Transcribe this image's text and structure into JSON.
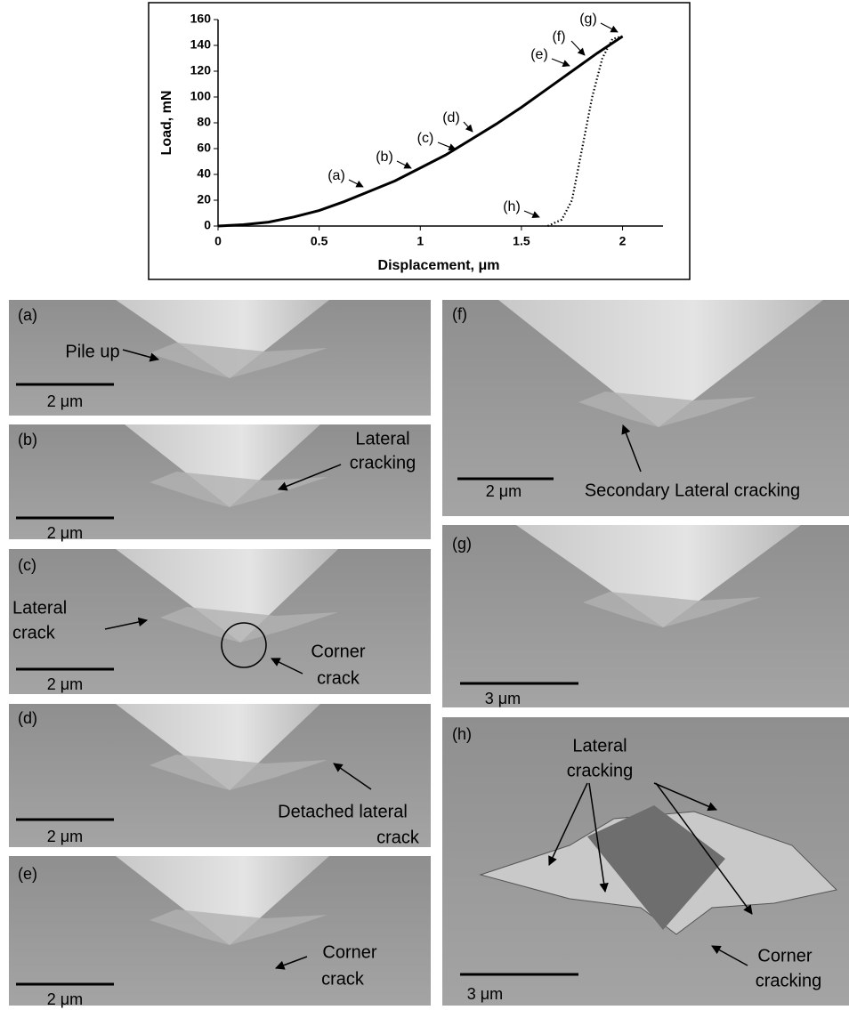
{
  "chart_data": {
    "type": "line",
    "x_label": "Displacement, μm",
    "y_label": "Load, mN",
    "xlim": [
      0,
      2.2
    ],
    "xticks": [
      0,
      0.5,
      1,
      1.5,
      2
    ],
    "ylim": [
      0,
      160
    ],
    "yticks": [
      0,
      20,
      40,
      60,
      80,
      100,
      120,
      140,
      160
    ],
    "series": [
      {
        "color": "#000000",
        "style": "solid",
        "x": [
          0,
          0.125,
          0.25,
          0.375,
          0.5,
          0.625,
          0.75,
          0.875,
          1,
          1.125,
          1.25,
          1.375,
          1.5,
          1.625,
          1.75,
          1.875,
          2
        ],
        "values": [
          0,
          1,
          3,
          7,
          12,
          19,
          27,
          35,
          45,
          55,
          67,
          79,
          92,
          106,
          120,
          134,
          147
        ]
      },
      {
        "color": "#000000",
        "style": "dotted",
        "x": [
          1.63,
          1.7,
          1.75,
          1.8,
          1.85,
          1.9,
          1.95,
          2
        ],
        "values": [
          0,
          5,
          20,
          60,
          100,
          130,
          145,
          147
        ]
      }
    ],
    "annotations": [
      "(a)",
      "(b)",
      "(c)",
      "(d)",
      "(e)",
      "(f)",
      "(g)",
      "(h)"
    ]
  },
  "panels": [
    {
      "label": "(a)",
      "scale_bar": "2 μm",
      "annotations": [
        [
          "Pile up"
        ]
      ]
    },
    {
      "label": "(b)",
      "scale_bar": "2 μm",
      "annotations": [
        [
          "Lateral",
          "cracking"
        ]
      ]
    },
    {
      "label": "(c)",
      "scale_bar": "2 μm",
      "annotations": [
        [
          "Lateral",
          "crack"
        ],
        [
          "Corner",
          "crack"
        ]
      ]
    },
    {
      "label": "(d)",
      "scale_bar": "2 μm",
      "annotations": [
        [
          "Detached lateral",
          "crack"
        ]
      ]
    },
    {
      "label": "(e)",
      "scale_bar": "2 μm",
      "annotations": [
        [
          "Corner",
          "crack"
        ]
      ]
    },
    {
      "label": "(f)",
      "scale_bar": "2 μm",
      "annotations": [
        [
          "Secondary Lateral cracking"
        ]
      ]
    },
    {
      "label": "(g)",
      "scale_bar": "3 μm",
      "annotations": []
    },
    {
      "label": "(h)",
      "scale_bar": "3 μm",
      "annotations": [
        [
          "Lateral",
          "cracking"
        ],
        [
          "Corner",
          "cracking"
        ]
      ]
    }
  ]
}
